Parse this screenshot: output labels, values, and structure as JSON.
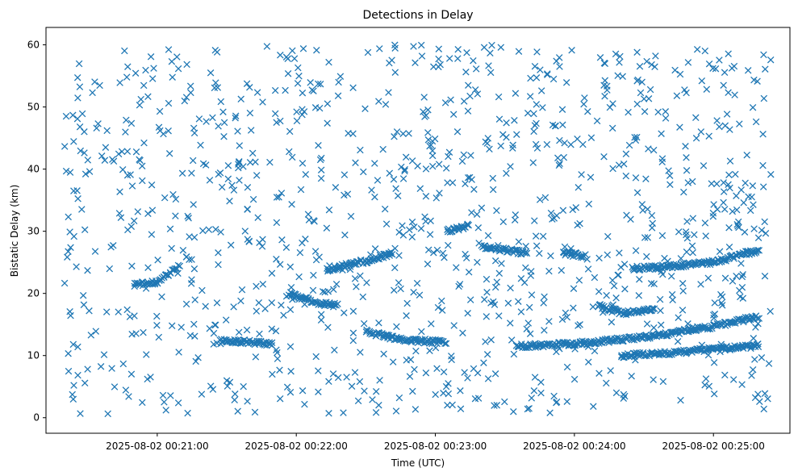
{
  "chart_data": {
    "type": "scatter",
    "title": "Detections in Delay",
    "xlabel": "Time (UTC)",
    "ylabel": "Bistatic Delay (km)",
    "x_unit": "UTC time",
    "x_range": [
      "2025-08-02 00:20:20",
      "2025-08-02 00:25:25"
    ],
    "xlim": [
      "2025-08-02 00:20:12",
      "2025-08-02 00:25:33"
    ],
    "ylim": [
      -2.5,
      62.8
    ],
    "x_ticks": [
      "2025-08-02 00:21:00",
      "2025-08-02 00:22:00",
      "2025-08-02 00:23:00",
      "2025-08-02 00:24:00",
      "2025-08-02 00:25:00"
    ],
    "y_ticks": [
      0,
      10,
      20,
      30,
      40,
      50,
      60
    ],
    "marker": "x",
    "color": "#1f77b4",
    "grid": false,
    "legend": "none",
    "series": [
      {
        "description": "visible tracks of clustered detections",
        "tracks": [
          {
            "x": [
              "2025-08-02 00:20:50",
              "2025-08-02 00:21:00",
              "2025-08-02 00:21:10"
            ],
            "y": [
              21.4,
              21.8,
              24.5
            ]
          },
          {
            "x": [
              "2025-08-02 00:21:27",
              "2025-08-02 00:21:40",
              "2025-08-02 00:21:50"
            ],
            "y": [
              12.5,
              12.2,
              11.8
            ]
          },
          {
            "x": [
              "2025-08-02 00:21:57",
              "2025-08-02 00:22:10",
              "2025-08-02 00:22:18"
            ],
            "y": [
              19.9,
              18.4,
              18.0
            ]
          },
          {
            "x": [
              "2025-08-02 00:22:13",
              "2025-08-02 00:22:30",
              "2025-08-02 00:22:42"
            ],
            "y": [
              23.8,
              25.2,
              26.5
            ]
          },
          {
            "x": [
              "2025-08-02 00:22:30",
              "2025-08-02 00:22:45",
              "2025-08-02 00:23:05"
            ],
            "y": [
              13.8,
              12.6,
              12.1
            ]
          },
          {
            "x": [
              "2025-08-02 00:23:05",
              "2025-08-02 00:23:15"
            ],
            "y": [
              30.0,
              31.0
            ]
          },
          {
            "x": [
              "2025-08-02 00:23:20",
              "2025-08-02 00:23:30",
              "2025-08-02 00:23:40"
            ],
            "y": [
              27.5,
              27.0,
              26.5
            ]
          },
          {
            "x": [
              "2025-08-02 00:23:35",
              "2025-08-02 00:24:00",
              "2025-08-02 00:24:30",
              "2025-08-02 00:25:00",
              "2025-08-02 00:25:20"
            ],
            "y": [
              11.5,
              11.9,
              12.9,
              14.7,
              16.3
            ]
          },
          {
            "x": [
              "2025-08-02 00:23:55",
              "2025-08-02 00:24:05"
            ],
            "y": [
              26.5,
              26.0
            ]
          },
          {
            "x": [
              "2025-08-02 00:24:10",
              "2025-08-02 00:24:20",
              "2025-08-02 00:24:35"
            ],
            "y": [
              18.2,
              16.8,
              17.5
            ]
          },
          {
            "x": [
              "2025-08-02 00:24:25",
              "2025-08-02 00:24:40",
              "2025-08-02 00:25:00",
              "2025-08-02 00:25:20"
            ],
            "y": [
              24.0,
              24.3,
              25.0,
              27.0
            ]
          },
          {
            "x": [
              "2025-08-02 00:24:20",
              "2025-08-02 00:24:40",
              "2025-08-02 00:25:00",
              "2025-08-02 00:25:20"
            ],
            "y": [
              10.0,
              10.4,
              11.0,
              11.6
            ]
          }
        ],
        "scatter": "additional uniformly scattered detections across 0–60 km over the full time range (~1500 points total)"
      }
    ]
  }
}
